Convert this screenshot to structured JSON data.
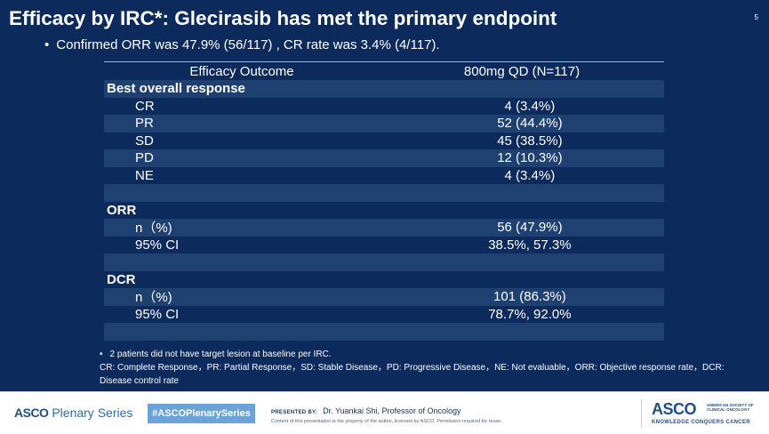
{
  "slide": {
    "title": "Efficacy by IRC*: Glecirasib has met the primary endpoint",
    "page_number": "5",
    "bullet": "Confirmed ORR was 47.9% (56/117) , CR rate was 3.4% (4/117).",
    "bullet_marker": "•"
  },
  "table": {
    "header": {
      "col1": "Efficacy Outcome",
      "col2": "800mg QD (N=117)"
    },
    "best_overall_response": {
      "label": "Best overall response",
      "rows": [
        {
          "label": "CR",
          "value": "4 (3.4%)"
        },
        {
          "label": "PR",
          "value": "52 (44.4%)"
        },
        {
          "label": "SD",
          "value": "45 (38.5%)"
        },
        {
          "label": "PD",
          "value": "12 (10.3%)"
        },
        {
          "label": "NE",
          "value": "4 (3.4%)"
        }
      ]
    },
    "orr": {
      "label": "ORR",
      "rows": [
        {
          "label": "n（%)",
          "value": "56 (47.9%)"
        },
        {
          "label": "95% CI",
          "value": "38.5%, 57.3%"
        }
      ]
    },
    "dcr": {
      "label": "DCR",
      "rows": [
        {
          "label": "n（%)",
          "value": "101 (86.3%)"
        },
        {
          "label": "95% CI",
          "value": "78.7%, 92.0%"
        }
      ]
    }
  },
  "footnotes": {
    "marker": "•",
    "line1": "2 patients did not have target lesion at baseline per IRC.",
    "line2": "CR: Complete Response，PR: Partial Response，SD: Stable Disease，PD: Progressive Disease，NE: Not evaluable，ORR: Objective response rate，DCR: Disease control rate"
  },
  "footer": {
    "asco_word": "ASCO",
    "series_word": " Plenary Series",
    "hashtag": "#ASCOPlenarySeries",
    "presented_by_label": "PRESENTED BY:",
    "presenter": "Dr. Yuankai Shi, Professor of Oncology",
    "disclaimer": "Content of this presentation is the property of the author, licensed by ASCO. Permission required for reuse.",
    "logo_word": "ASCO",
    "society_line1": "AMERICAN SOCIETY OF",
    "society_line2": "CLINICAL ONCOLOGY",
    "tagline": "KNOWLEDGE CONQUERS CANCER"
  },
  "colors": {
    "background": "#0c2a5b",
    "row_alt": "#1f4172",
    "asco_blue": "#1c4f8f",
    "hashtag_bg": "#6aa3d9"
  }
}
